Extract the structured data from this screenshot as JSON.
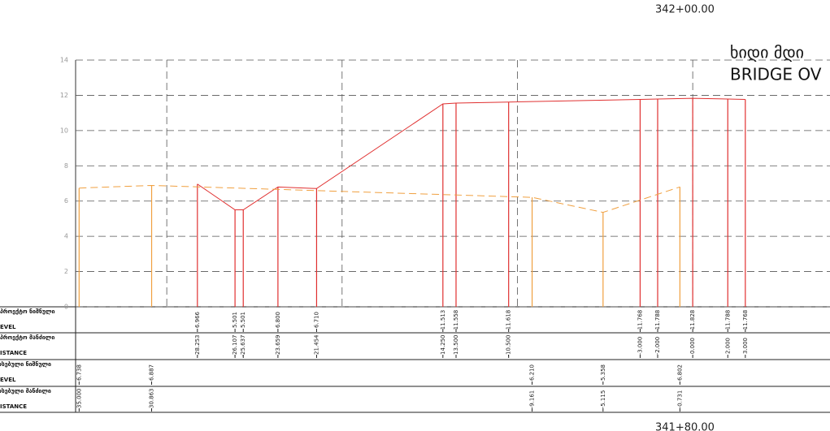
{
  "chart_data": {
    "type": "line",
    "title": "ხიდი მდი",
    "subtitle": "BRIDGE OV",
    "station_top": "342+00.00",
    "station_bottom": "341+80.00",
    "ylim": [
      0,
      14
    ],
    "yticks": [
      0,
      2,
      4,
      6,
      8,
      10,
      12,
      14
    ],
    "xlim": [
      -35.2,
      7.83
    ],
    "xticks": [
      -30,
      -20,
      -10,
      0
    ],
    "grid": true,
    "table_rows": [
      {
        "label": "აპროექტო ნიშნული",
        "sublabel": "EVEL"
      },
      {
        "label": "აპროექტო მანძილი",
        "sublabel": "ISTANCE"
      },
      {
        "label": "რსებული ნიშნული",
        "sublabel": "EVEL"
      },
      {
        "label": "რსებული მანძილი",
        "sublabel": "ISTANCE"
      }
    ],
    "series": [
      {
        "color": "#e03030",
        "dashed": false,
        "x": [
          -28.253,
          -26.107,
          -25.637,
          -23.659,
          -21.454,
          -14.25,
          -13.5,
          -10.5,
          -3,
          -2,
          0,
          2,
          3
        ],
        "x_labels": [
          "-28.253",
          "-26.107",
          "-25.637",
          "-23.659",
          "-21.454",
          "-14.250",
          "-13.500",
          "-10.500",
          "-3.000",
          "-2.000",
          "0.000",
          "2.000",
          "3.000"
        ],
        "values": [
          6.966,
          5.501,
          5.501,
          6.8,
          6.71,
          11.513,
          11.558,
          11.618,
          11.768,
          11.788,
          11.828,
          11.788,
          11.768
        ],
        "value_labels": [
          "6.966",
          "5.501",
          "5.501",
          "6.800",
          "6.710",
          "11.513",
          "11.558",
          "11.618",
          "11.768",
          "11.788",
          "11.828",
          "11.788",
          "11.768"
        ]
      },
      {
        "color": "#f0a040",
        "dashed": true,
        "x": [
          -35,
          -30.863,
          -9.161,
          -5.115,
          -0.731
        ],
        "x_labels": [
          "-35.000",
          "-30.863",
          "-9.161",
          "-5.115",
          "-0.731"
        ],
        "values": [
          6.738,
          6.887,
          6.21,
          5.358,
          6.802
        ],
        "value_labels": [
          "6.738",
          "6.887",
          "6.210",
          "5.358",
          "6.802"
        ]
      }
    ]
  }
}
